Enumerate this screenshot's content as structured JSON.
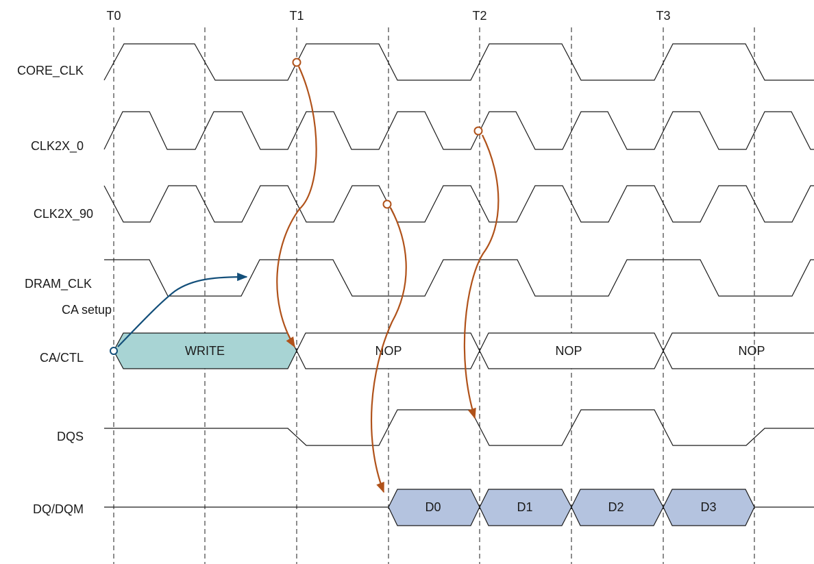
{
  "time_markers": [
    "T0",
    "T1",
    "T2",
    "T3"
  ],
  "signals": {
    "core_clk": "CORE_CLK",
    "clk2x_0": "CLK2X_0",
    "clk2x_90": "CLK2X_90",
    "dram_clk": "DRAM_CLK",
    "ca_ctl": "CA/CTL",
    "dqs": "DQS",
    "dq_dqm": "DQ/DQM"
  },
  "ca_commands": [
    "WRITE",
    "NOP",
    "NOP",
    "NOP"
  ],
  "dq_data": [
    "D0",
    "D1",
    "D2",
    "D3"
  ],
  "annotations": {
    "ca_setup": "CA setup"
  },
  "colors": {
    "write_fill": "#a8d4d4",
    "data_fill": "#b4c3df",
    "causal_arrow": "#b0521a",
    "setup_arrow": "#134f7a",
    "line": "#1a1a1a"
  }
}
